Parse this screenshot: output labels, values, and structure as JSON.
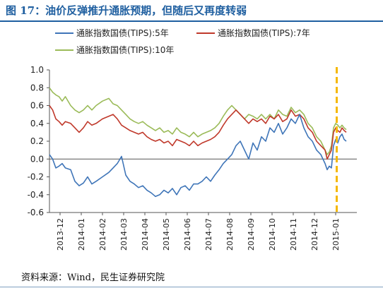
{
  "title": "图 17：油价反弹推升通胀预期，但随后又再度转弱",
  "source": "资料来源：Wind，民生证券研究院",
  "chart_data": {
    "type": "line",
    "title": "图 17：油价反弹推升通胀预期，但随后又再度转弱",
    "xlabel": "",
    "ylabel": "",
    "ylim": [
      -0.6,
      1.0
    ],
    "yticks": [
      "1.0",
      "0.8",
      "0.6",
      "0.4",
      "0.2",
      "0.0",
      "-0.2",
      "-0.4",
      "-0.6"
    ],
    "xticks": [
      "2013-12",
      "2014-01",
      "2014-02",
      "2014-03",
      "2014-04",
      "2014-05",
      "2014-06",
      "2014-07",
      "2014-08",
      "2014-09",
      "2014-10",
      "2014-11",
      "2014-12",
      "2015-01"
    ],
    "xrange": [
      0,
      14.5
    ],
    "grid": false,
    "legend_position": "top",
    "marker_x": 13.55,
    "colors": {
      "series_5y": "#3f75b8",
      "series_7y": "#c0392b",
      "series_10y": "#9bbb59",
      "marker": "#f5b800"
    },
    "series": [
      {
        "name": "通胀指数国债(TIPS):5年",
        "x": [
          0,
          0.15,
          0.3,
          0.45,
          0.6,
          0.75,
          1.0,
          1.2,
          1.4,
          1.6,
          1.8,
          2.0,
          2.2,
          2.5,
          2.8,
          3.0,
          3.2,
          3.4,
          3.6,
          3.8,
          4.0,
          4.2,
          4.4,
          4.6,
          4.8,
          5.0,
          5.2,
          5.4,
          5.6,
          5.8,
          6.0,
          6.2,
          6.4,
          6.6,
          6.8,
          7.0,
          7.2,
          7.4,
          7.6,
          7.8,
          8.0,
          8.2,
          8.4,
          8.6,
          8.8,
          9.0,
          9.2,
          9.4,
          9.6,
          9.8,
          10.0,
          10.2,
          10.4,
          10.6,
          10.8,
          11.0,
          11.2,
          11.4,
          11.6,
          11.8,
          12.0,
          12.2,
          12.4,
          12.6,
          12.8,
          13.0,
          13.1,
          13.2,
          13.3,
          13.4,
          13.5,
          13.6,
          13.7,
          13.8,
          13.9,
          14.0
        ],
        "values": [
          0.05,
          0.0,
          -0.1,
          -0.08,
          -0.05,
          -0.1,
          -0.12,
          -0.25,
          -0.3,
          -0.27,
          -0.2,
          -0.28,
          -0.25,
          -0.2,
          -0.15,
          -0.1,
          -0.05,
          0.03,
          -0.18,
          -0.25,
          -0.28,
          -0.32,
          -0.3,
          -0.35,
          -0.38,
          -0.42,
          -0.4,
          -0.35,
          -0.38,
          -0.33,
          -0.4,
          -0.32,
          -0.3,
          -0.35,
          -0.28,
          -0.28,
          -0.25,
          -0.2,
          -0.25,
          -0.18,
          -0.12,
          -0.05,
          0.0,
          0.05,
          0.15,
          0.2,
          0.1,
          0.0,
          0.18,
          0.1,
          0.25,
          0.2,
          0.35,
          0.3,
          0.4,
          0.28,
          0.35,
          0.45,
          0.4,
          0.5,
          0.35,
          0.25,
          0.2,
          0.1,
          0.05,
          -0.05,
          -0.12,
          -0.08,
          -0.1,
          0.15,
          0.22,
          0.18,
          0.25,
          0.28,
          0.22,
          0.2
        ]
      },
      {
        "name": "通胀指数国债(TIPS):7年",
        "x": [
          0,
          0.15,
          0.3,
          0.45,
          0.6,
          0.75,
          1.0,
          1.2,
          1.4,
          1.6,
          1.8,
          2.0,
          2.2,
          2.5,
          2.8,
          3.0,
          3.2,
          3.4,
          3.6,
          3.8,
          4.0,
          4.2,
          4.4,
          4.6,
          4.8,
          5.0,
          5.2,
          5.4,
          5.6,
          5.8,
          6.0,
          6.2,
          6.4,
          6.6,
          6.8,
          7.0,
          7.2,
          7.4,
          7.6,
          7.8,
          8.0,
          8.2,
          8.4,
          8.6,
          8.8,
          9.0,
          9.2,
          9.4,
          9.6,
          9.8,
          10.0,
          10.2,
          10.4,
          10.6,
          10.8,
          11.0,
          11.2,
          11.4,
          11.6,
          11.8,
          12.0,
          12.2,
          12.4,
          12.6,
          12.8,
          13.0,
          13.1,
          13.2,
          13.3,
          13.4,
          13.5,
          13.6,
          13.7,
          13.8,
          13.9,
          14.0
        ],
        "values": [
          0.6,
          0.55,
          0.45,
          0.42,
          0.38,
          0.42,
          0.4,
          0.35,
          0.3,
          0.35,
          0.42,
          0.38,
          0.4,
          0.45,
          0.48,
          0.5,
          0.45,
          0.38,
          0.35,
          0.32,
          0.3,
          0.28,
          0.3,
          0.25,
          0.22,
          0.2,
          0.22,
          0.18,
          0.2,
          0.15,
          0.22,
          0.2,
          0.18,
          0.15,
          0.2,
          0.15,
          0.18,
          0.2,
          0.22,
          0.25,
          0.3,
          0.38,
          0.45,
          0.5,
          0.55,
          0.5,
          0.45,
          0.4,
          0.45,
          0.42,
          0.45,
          0.4,
          0.48,
          0.45,
          0.5,
          0.42,
          0.45,
          0.55,
          0.48,
          0.5,
          0.45,
          0.35,
          0.3,
          0.2,
          0.15,
          0.1,
          0.0,
          0.05,
          0.1,
          0.3,
          0.35,
          0.32,
          0.3,
          0.35,
          0.32,
          0.3
        ]
      },
      {
        "name": "通胀指数国债(TIPS):10年",
        "x": [
          0,
          0.15,
          0.3,
          0.45,
          0.6,
          0.75,
          1.0,
          1.2,
          1.4,
          1.6,
          1.8,
          2.0,
          2.2,
          2.5,
          2.8,
          3.0,
          3.2,
          3.4,
          3.6,
          3.8,
          4.0,
          4.2,
          4.4,
          4.6,
          4.8,
          5.0,
          5.2,
          5.4,
          5.6,
          5.8,
          6.0,
          6.2,
          6.4,
          6.6,
          6.8,
          7.0,
          7.2,
          7.4,
          7.6,
          7.8,
          8.0,
          8.2,
          8.4,
          8.6,
          8.8,
          9.0,
          9.2,
          9.4,
          9.6,
          9.8,
          10.0,
          10.2,
          10.4,
          10.6,
          10.8,
          11.0,
          11.2,
          11.4,
          11.6,
          11.8,
          12.0,
          12.2,
          12.4,
          12.6,
          12.8,
          13.0,
          13.1,
          13.2,
          13.3,
          13.4,
          13.5,
          13.6,
          13.7,
          13.8,
          13.9,
          14.0
        ],
        "values": [
          0.8,
          0.75,
          0.72,
          0.7,
          0.65,
          0.7,
          0.6,
          0.55,
          0.52,
          0.55,
          0.6,
          0.55,
          0.6,
          0.65,
          0.68,
          0.62,
          0.6,
          0.55,
          0.5,
          0.45,
          0.42,
          0.4,
          0.42,
          0.38,
          0.35,
          0.32,
          0.35,
          0.3,
          0.32,
          0.28,
          0.35,
          0.3,
          0.28,
          0.25,
          0.3,
          0.25,
          0.28,
          0.3,
          0.32,
          0.35,
          0.4,
          0.48,
          0.55,
          0.6,
          0.55,
          0.5,
          0.45,
          0.5,
          0.48,
          0.45,
          0.5,
          0.45,
          0.5,
          0.45,
          0.55,
          0.5,
          0.48,
          0.58,
          0.52,
          0.55,
          0.5,
          0.4,
          0.35,
          0.25,
          0.2,
          0.1,
          0.05,
          0.08,
          0.15,
          0.35,
          0.4,
          0.38,
          0.35,
          0.38,
          0.35,
          0.33
        ]
      }
    ]
  }
}
